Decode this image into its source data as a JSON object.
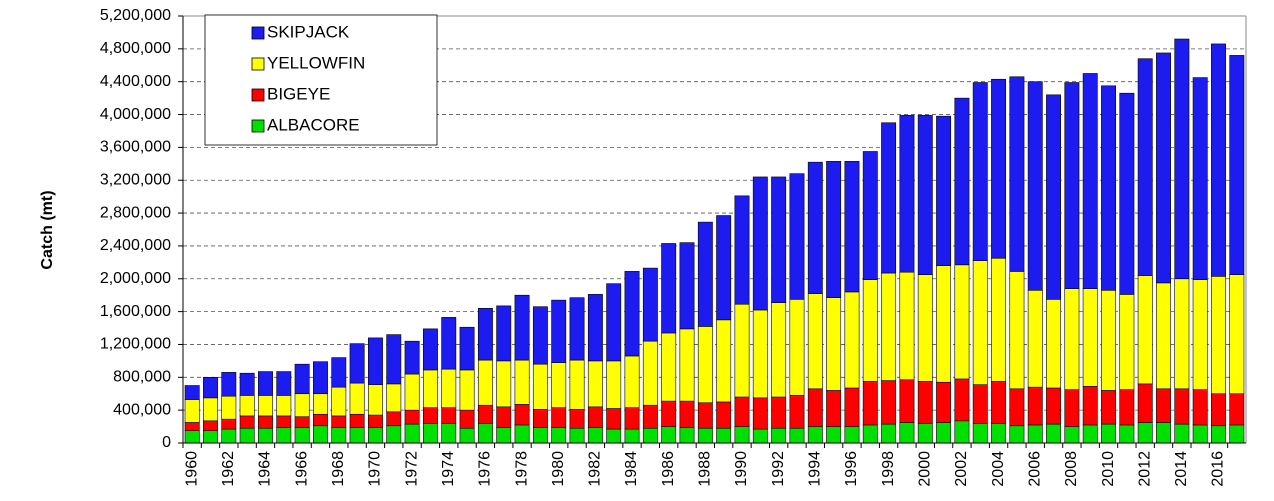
{
  "chart_data": {
    "type": "stacked_bar",
    "y_label": "Catch (mt)",
    "categories": [
      "1960",
      null,
      "1962",
      null,
      "1964",
      null,
      "1966",
      null,
      "1968",
      null,
      "1970",
      null,
      "1972",
      null,
      "1974",
      null,
      "1976",
      null,
      "1978",
      null,
      "1980",
      null,
      "1982",
      null,
      "1984",
      null,
      "1986",
      null,
      "1988",
      null,
      "1990",
      null,
      "1992",
      null,
      "1994",
      null,
      "1996",
      null,
      "1998",
      null,
      "2000",
      null,
      "2002",
      null,
      "2004",
      null,
      "2006",
      null,
      "2008",
      null,
      "2010",
      null,
      "2012",
      null,
      "2014",
      null,
      "2016",
      null
    ],
    "series": [
      {
        "name": "ALBACORE",
        "color": "#00e000",
        "values": [
          150000,
          150000,
          170000,
          180000,
          180000,
          190000,
          190000,
          210000,
          190000,
          190000,
          190000,
          210000,
          230000,
          240000,
          240000,
          180000,
          240000,
          190000,
          220000,
          190000,
          190000,
          180000,
          190000,
          170000,
          170000,
          180000,
          200000,
          190000,
          180000,
          180000,
          200000,
          170000,
          180000,
          180000,
          200000,
          200000,
          200000,
          220000,
          230000,
          250000,
          240000,
          250000,
          270000,
          240000,
          240000,
          210000,
          220000,
          230000,
          200000,
          220000,
          230000,
          220000,
          250000,
          250000,
          230000,
          220000,
          210000,
          220000
        ]
      },
      {
        "name": "BIGEYE",
        "color": "#ff0000",
        "values": [
          100000,
          120000,
          120000,
          150000,
          150000,
          140000,
          130000,
          140000,
          140000,
          160000,
          150000,
          170000,
          170000,
          190000,
          190000,
          220000,
          220000,
          250000,
          250000,
          220000,
          240000,
          230000,
          250000,
          250000,
          260000,
          280000,
          310000,
          320000,
          310000,
          320000,
          360000,
          380000,
          380000,
          400000,
          460000,
          440000,
          470000,
          530000,
          530000,
          520000,
          510000,
          490000,
          510000,
          470000,
          510000,
          450000,
          460000,
          440000,
          450000,
          470000,
          410000,
          430000,
          470000,
          410000,
          430000,
          430000,
          390000,
          380000
        ]
      },
      {
        "name": "YELLOWFIN",
        "color": "#ffff00",
        "values": [
          280000,
          280000,
          280000,
          250000,
          250000,
          250000,
          280000,
          250000,
          350000,
          380000,
          370000,
          340000,
          440000,
          460000,
          470000,
          490000,
          550000,
          560000,
          540000,
          550000,
          550000,
          600000,
          560000,
          580000,
          630000,
          780000,
          830000,
          880000,
          930000,
          1000000,
          1130000,
          1070000,
          1150000,
          1170000,
          1160000,
          1130000,
          1170000,
          1240000,
          1310000,
          1310000,
          1300000,
          1420000,
          1390000,
          1510000,
          1500000,
          1430000,
          1180000,
          1080000,
          1230000,
          1190000,
          1220000,
          1160000,
          1320000,
          1290000,
          1340000,
          1340000,
          1430000,
          1450000
        ]
      },
      {
        "name": "SKIPJACK",
        "color": "#1c1cf0",
        "values": [
          170000,
          250000,
          290000,
          270000,
          290000,
          290000,
          360000,
          390000,
          360000,
          480000,
          570000,
          600000,
          400000,
          500000,
          630000,
          520000,
          630000,
          670000,
          790000,
          700000,
          760000,
          760000,
          810000,
          940000,
          1030000,
          890000,
          1090000,
          1050000,
          1270000,
          1270000,
          1320000,
          1620000,
          1530000,
          1530000,
          1600000,
          1660000,
          1590000,
          1560000,
          1830000,
          1910000,
          1940000,
          1820000,
          2030000,
          2170000,
          2180000,
          2370000,
          2540000,
          2490000,
          2510000,
          2620000,
          2490000,
          2450000,
          2640000,
          2800000,
          2920000,
          2460000,
          2830000,
          2670000
        ]
      }
    ],
    "ylim": [
      0,
      5200000
    ],
    "yticks": [
      0,
      {
        "value": 400000,
        "label": "400,000"
      },
      {
        "value": 800000,
        "label": "800,000"
      },
      {
        "value": 1200000,
        "label": "1,200,000"
      },
      {
        "value": 1600000,
        "label": "1,600,000"
      },
      {
        "value": 2000000,
        "label": "2,000,000"
      },
      {
        "value": 2400000,
        "label": "2,400,000"
      },
      {
        "value": 2800000,
        "label": "2,800,000"
      },
      {
        "value": 3200000,
        "label": "3,200,000"
      },
      {
        "value": 3600000,
        "label": "3,600,000"
      },
      {
        "value": 4000000,
        "label": "4,000,000"
      },
      {
        "value": 4400000,
        "label": "4,400,000"
      },
      {
        "value": 4800000,
        "label": "4,800,000"
      },
      {
        "value": 5200000,
        "label": "5,200,000"
      }
    ],
    "grid": true
  }
}
